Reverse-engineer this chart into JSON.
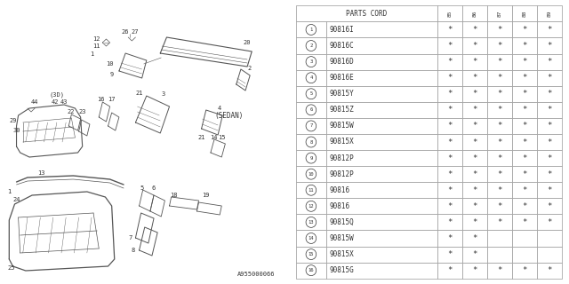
{
  "table_header": [
    "PARTS CORD",
    "85",
    "86",
    "87",
    "88",
    "89"
  ],
  "rows": [
    {
      "num": "1",
      "code": "90816I",
      "marks": [
        true,
        true,
        true,
        true,
        true
      ]
    },
    {
      "num": "2",
      "code": "90816C",
      "marks": [
        true,
        true,
        true,
        true,
        true
      ]
    },
    {
      "num": "3",
      "code": "90816D",
      "marks": [
        true,
        true,
        true,
        true,
        true
      ]
    },
    {
      "num": "4",
      "code": "90816E",
      "marks": [
        true,
        true,
        true,
        true,
        true
      ]
    },
    {
      "num": "5",
      "code": "90815Y",
      "marks": [
        true,
        true,
        true,
        true,
        true
      ]
    },
    {
      "num": "6",
      "code": "90815Z",
      "marks": [
        true,
        true,
        true,
        true,
        true
      ]
    },
    {
      "num": "7",
      "code": "90815W",
      "marks": [
        true,
        true,
        true,
        true,
        true
      ]
    },
    {
      "num": "8",
      "code": "90815X",
      "marks": [
        true,
        true,
        true,
        true,
        true
      ]
    },
    {
      "num": "9",
      "code": "90812P",
      "marks": [
        true,
        true,
        true,
        true,
        true
      ]
    },
    {
      "num": "10",
      "code": "90812P",
      "marks": [
        true,
        true,
        true,
        true,
        true
      ]
    },
    {
      "num": "11",
      "code": "90816",
      "marks": [
        true,
        true,
        true,
        true,
        true
      ]
    },
    {
      "num": "12",
      "code": "90816",
      "marks": [
        true,
        true,
        true,
        true,
        true
      ]
    },
    {
      "num": "13",
      "code": "90815Q",
      "marks": [
        true,
        true,
        true,
        true,
        true
      ]
    },
    {
      "num": "14",
      "code": "90815W",
      "marks": [
        true,
        true,
        false,
        false,
        false
      ]
    },
    {
      "num": "15",
      "code": "90815X",
      "marks": [
        true,
        true,
        false,
        false,
        false
      ]
    },
    {
      "num": "16",
      "code": "90815G",
      "marks": [
        true,
        true,
        true,
        true,
        true
      ]
    }
  ],
  "bg_color": "#ffffff",
  "line_color": "#999999",
  "text_color": "#333333",
  "diagram_label": "A955000066"
}
